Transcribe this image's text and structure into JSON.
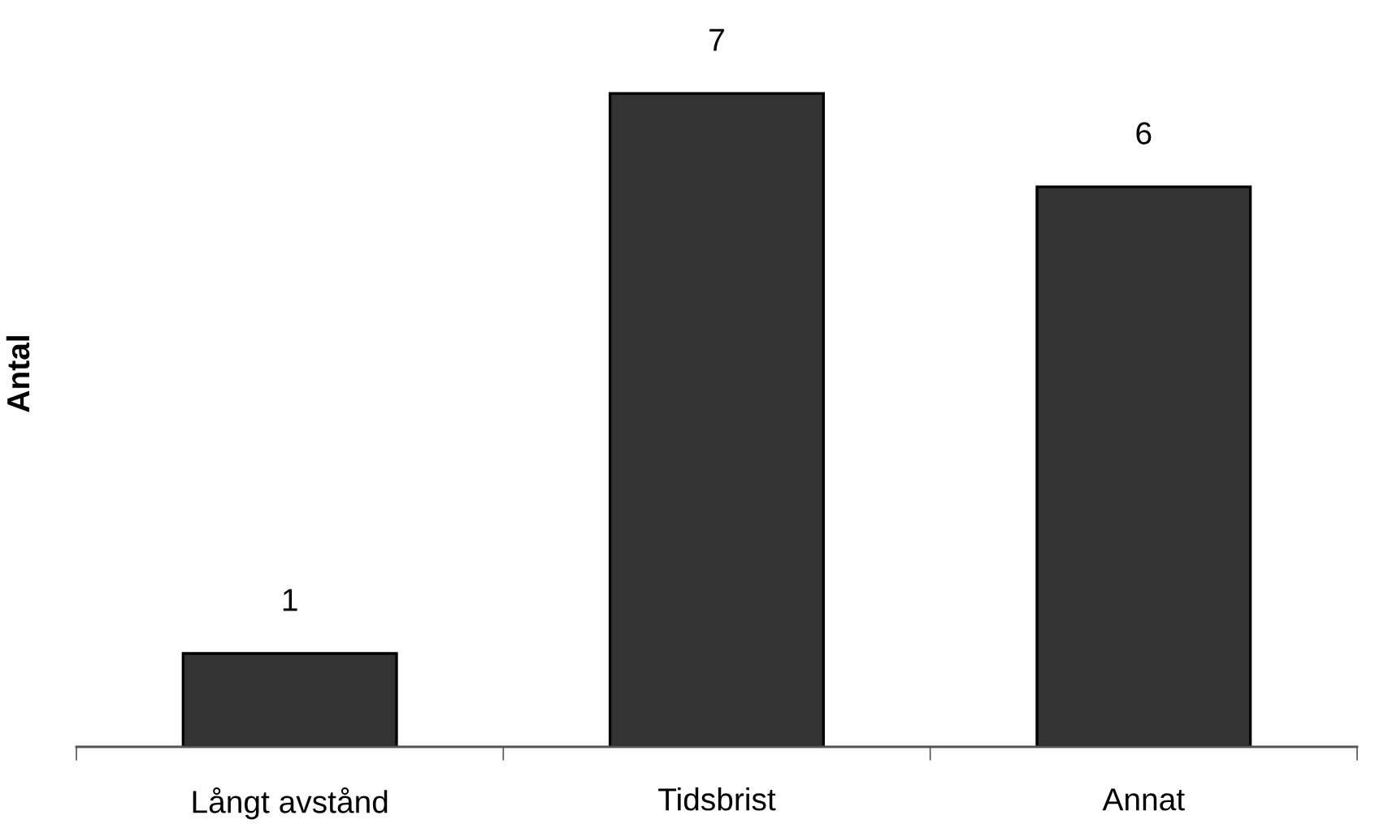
{
  "chart_data": {
    "type": "bar",
    "ylabel": "Antal",
    "categories": [
      "Långt avstånd",
      "Tidsbrist",
      "Annat"
    ],
    "values": [
      1,
      7,
      6
    ],
    "color": "#333333",
    "data_labels": true
  }
}
